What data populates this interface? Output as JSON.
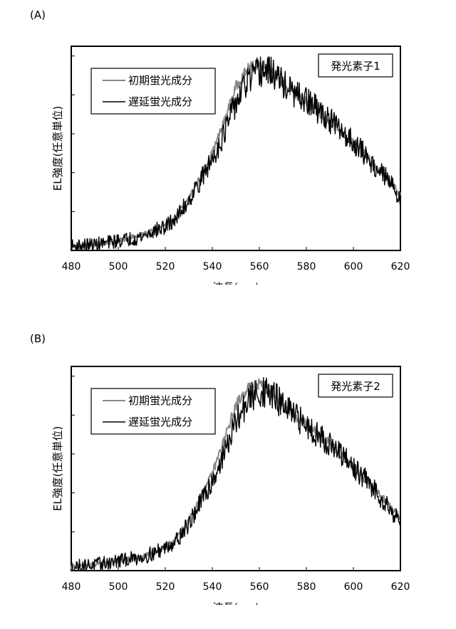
{
  "panels": [
    {
      "label": "(A)",
      "ylabel": "EL強度(任意単位)",
      "xlabel": "波長(nm)",
      "badge": "発光素子1",
      "legend": [
        "初期蛍光成分",
        "遅延蛍光成分"
      ]
    },
    {
      "label": "(B)",
      "ylabel": "EL強度(任意単位)",
      "xlabel": "波長(nm)",
      "badge": "発光素子2",
      "legend": [
        "初期蛍光成分",
        "遅延蛍光成分"
      ]
    }
  ],
  "chart_data": [
    {
      "type": "line",
      "title": "発光素子1",
      "xlabel": "波長(nm)",
      "ylabel": "EL強度(任意単位)",
      "xlim": [
        480,
        620
      ],
      "ylim": [
        0,
        1.05
      ],
      "x_ticks": [
        480,
        500,
        520,
        540,
        560,
        580,
        600,
        620
      ],
      "y_ticks": [
        0,
        0.2,
        0.4,
        0.6,
        0.8,
        1.0
      ],
      "x": [
        480,
        490,
        500,
        510,
        515,
        520,
        525,
        530,
        535,
        540,
        545,
        550,
        555,
        560,
        565,
        570,
        575,
        580,
        585,
        590,
        595,
        600,
        605,
        610,
        615,
        620
      ],
      "series": [
        {
          "name": "初期蛍光成分",
          "color": "#888888",
          "values": [
            0.02,
            0.03,
            0.05,
            0.08,
            0.1,
            0.13,
            0.18,
            0.27,
            0.38,
            0.5,
            0.66,
            0.84,
            0.93,
            0.96,
            0.93,
            0.86,
            0.8,
            0.76,
            0.71,
            0.66,
            0.61,
            0.55,
            0.49,
            0.42,
            0.36,
            0.29
          ]
        },
        {
          "name": "遅延蛍光成分",
          "color": "#000000",
          "values": [
            0.02,
            0.03,
            0.05,
            0.07,
            0.1,
            0.12,
            0.17,
            0.26,
            0.36,
            0.47,
            0.6,
            0.76,
            0.87,
            0.92,
            0.92,
            0.86,
            0.8,
            0.77,
            0.72,
            0.67,
            0.61,
            0.56,
            0.49,
            0.42,
            0.36,
            0.27
          ]
        }
      ]
    },
    {
      "type": "line",
      "title": "発光素子2",
      "xlabel": "波長(nm)",
      "ylabel": "EL強度(任意単位)",
      "xlim": [
        480,
        620
      ],
      "ylim": [
        0,
        1.05
      ],
      "x_ticks": [
        480,
        500,
        520,
        540,
        560,
        580,
        600,
        620
      ],
      "y_ticks": [
        0,
        0.2,
        0.4,
        0.6,
        0.8,
        1.0
      ],
      "x": [
        480,
        490,
        500,
        510,
        515,
        520,
        525,
        530,
        535,
        540,
        545,
        550,
        555,
        560,
        565,
        570,
        575,
        580,
        585,
        590,
        595,
        600,
        605,
        610,
        615,
        620
      ],
      "series": [
        {
          "name": "初期蛍光成分",
          "color": "#888888",
          "values": [
            0.02,
            0.03,
            0.05,
            0.07,
            0.09,
            0.12,
            0.17,
            0.26,
            0.37,
            0.5,
            0.67,
            0.85,
            0.94,
            0.96,
            0.92,
            0.85,
            0.79,
            0.75,
            0.7,
            0.65,
            0.59,
            0.53,
            0.47,
            0.41,
            0.34,
            0.27
          ]
        },
        {
          "name": "遅延蛍光成分",
          "color": "#000000",
          "values": [
            0.02,
            0.03,
            0.05,
            0.07,
            0.09,
            0.12,
            0.16,
            0.24,
            0.35,
            0.46,
            0.6,
            0.76,
            0.87,
            0.92,
            0.91,
            0.85,
            0.79,
            0.75,
            0.7,
            0.65,
            0.59,
            0.53,
            0.47,
            0.4,
            0.33,
            0.25
          ]
        }
      ]
    }
  ]
}
